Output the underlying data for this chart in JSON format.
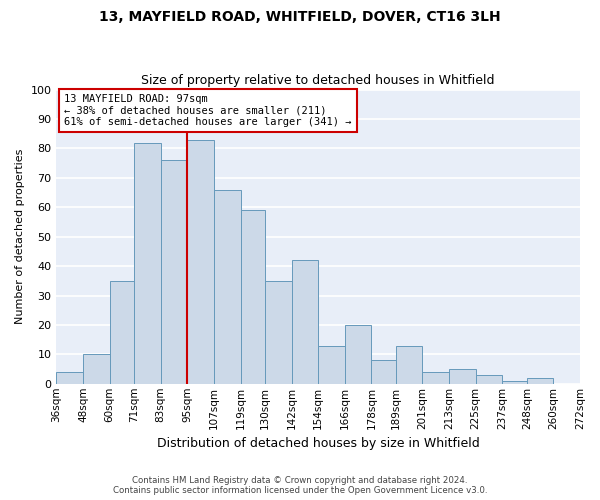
{
  "title": "13, MAYFIELD ROAD, WHITFIELD, DOVER, CT16 3LH",
  "subtitle": "Size of property relative to detached houses in Whitfield",
  "xlabel": "Distribution of detached houses by size in Whitfield",
  "ylabel": "Number of detached properties",
  "bar_color": "#ccd9e8",
  "bar_edge_color": "#6699bb",
  "plot_bg_color": "#e8eef8",
  "fig_bg_color": "#ffffff",
  "grid_color": "#ffffff",
  "bin_labels": [
    "36sqm",
    "48sqm",
    "60sqm",
    "71sqm",
    "83sqm",
    "95sqm",
    "107sqm",
    "119sqm",
    "130sqm",
    "142sqm",
    "154sqm",
    "166sqm",
    "178sqm",
    "189sqm",
    "201sqm",
    "213sqm",
    "225sqm",
    "237sqm",
    "248sqm",
    "260sqm",
    "272sqm"
  ],
  "bin_edges": [
    36,
    48,
    60,
    71,
    83,
    95,
    107,
    119,
    130,
    142,
    154,
    166,
    178,
    189,
    201,
    213,
    225,
    237,
    248,
    260,
    272
  ],
  "bar_heights": [
    4,
    10,
    35,
    82,
    76,
    83,
    66,
    59,
    35,
    42,
    13,
    20,
    8,
    13,
    4,
    5,
    3,
    1,
    2,
    0
  ],
  "ylim": [
    0,
    100
  ],
  "vline_x": 95,
  "vline_color": "#cc0000",
  "annotation_line1": "13 MAYFIELD ROAD: 97sqm",
  "annotation_line2": "← 38% of detached houses are smaller (211)",
  "annotation_line3": "61% of semi-detached houses are larger (341) →",
  "annotation_box_color": "#ffffff",
  "annotation_box_edge": "#cc0000",
  "footer1": "Contains HM Land Registry data © Crown copyright and database right 2024.",
  "footer2": "Contains public sector information licensed under the Open Government Licence v3.0."
}
